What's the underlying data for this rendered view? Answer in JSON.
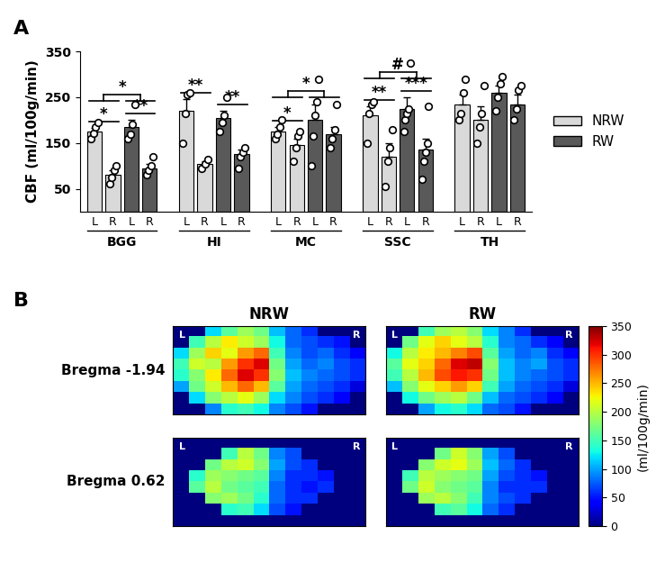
{
  "chart_data": [
    {
      "type": "bar",
      "panel": "A",
      "y_label": "CBF (ml/100g/min)",
      "categories": [
        "BGG",
        "HI",
        "MC",
        "SSC",
        "TH"
      ],
      "ylim": [
        0,
        350
      ],
      "yticks": [
        50,
        150,
        250,
        350
      ],
      "legend": "right",
      "series": [
        {
          "name": "NRW",
          "color": "#d9d9d9",
          "hemispheres": [
            {
              "side": "L",
              "values": [
                175,
                220,
                175,
                210,
                235
              ],
              "errors": [
                8,
                25,
                10,
                20,
                20
              ],
              "points": [
                [
                  160,
                  172,
                  185,
                  195
                ],
                [
                  150,
                  215,
                  255,
                  260
                ],
                [
                  160,
                  170,
                  185,
                  200
                ],
                [
                  150,
                  215,
                  235,
                  240
                ],
                [
                  200,
                  215,
                  260,
                  290
                ]
              ]
            },
            {
              "side": "R",
              "values": [
                80,
                105,
                145,
                120,
                200
              ],
              "errors": [
                10,
                6,
                15,
                30,
                30
              ],
              "points": [
                [
                  60,
                  75,
                  90,
                  100
                ],
                [
                  95,
                  105,
                  115
                ],
                [
                  110,
                  140,
                  165,
                  175
                ],
                [
                  55,
                  110,
                  140,
                  180
                ],
                [
                  150,
                  185,
                  215,
                  275
                ]
              ]
            }
          ]
        },
        {
          "name": "RW",
          "color": "#595959",
          "hemispheres": [
            {
              "side": "L",
              "values": [
                185,
                205,
                200,
                225,
                260
              ],
              "errors": [
                15,
                15,
                35,
                25,
                15
              ],
              "points": [
                [
                  160,
                  170,
                  190,
                  235
                ],
                [
                  175,
                  195,
                  210,
                  250
                ],
                [
                  100,
                  165,
                  210,
                  240,
                  290
                ],
                [
                  175,
                  200,
                  215,
                  225,
                  325
                ],
                [
                  220,
                  250,
                  280,
                  295
                ]
              ]
            },
            {
              "side": "R",
              "values": [
                95,
                125,
                170,
                135,
                235
              ],
              "errors": [
                10,
                10,
                15,
                25,
                20
              ],
              "points": [
                [
                  80,
                  90,
                  100,
                  120
                ],
                [
                  95,
                  120,
                  130,
                  140
                ],
                [
                  140,
                  160,
                  180,
                  235
                ],
                [
                  70,
                  110,
                  130,
                  150,
                  230
                ],
                [
                  200,
                  225,
                  265,
                  275
                ]
              ]
            }
          ]
        }
      ],
      "significance": [
        {
          "category": "BGG",
          "bars": [
            0,
            1
          ],
          "text": "*"
        },
        {
          "category": "BGG",
          "bars": [
            2,
            3
          ],
          "text": "**"
        },
        {
          "category": "BGG",
          "bars": [
            [
              0,
              1
            ],
            [
              2,
              3
            ]
          ],
          "text": "*"
        },
        {
          "category": "HI",
          "bars": [
            0,
            1
          ],
          "text": "**"
        },
        {
          "category": "HI",
          "bars": [
            2,
            3
          ],
          "text": "**"
        },
        {
          "category": "MC",
          "bars": [
            0,
            1
          ],
          "text": "*"
        },
        {
          "category": "MC",
          "bars": [
            [
              0,
              1
            ],
            [
              2,
              3
            ]
          ],
          "text": "*"
        },
        {
          "category": "SSC",
          "bars": [
            0,
            1
          ],
          "text": "**"
        },
        {
          "category": "SSC",
          "bars": [
            2,
            3
          ],
          "text": "***"
        },
        {
          "category": "SSC",
          "bars": [
            [
              0,
              1
            ],
            [
              2,
              3
            ]
          ],
          "text": "#"
        }
      ]
    },
    {
      "type": "heatmap",
      "panel": "B",
      "columns": [
        "NRW",
        "RW"
      ],
      "rows": [
        "Bregma -1.94",
        "Bregma 0.62"
      ],
      "hemisphere_labels": [
        "L",
        "R"
      ],
      "colorbar_label": "(ml/100g/min)",
      "color_range": [
        0,
        350
      ],
      "color_ticks": [
        0,
        50,
        100,
        150,
        200,
        250,
        300,
        350
      ],
      "cells": [
        [
          [
            [
              0,
              0,
              120,
              160,
              190,
              170,
              110,
              80,
              60,
              0,
              0,
              0
            ],
            [
              0,
              150,
              200,
              230,
              210,
              190,
              130,
              80,
              70,
              60,
              50,
              0
            ],
            [
              120,
              190,
              240,
              220,
              260,
              280,
              150,
              90,
              70,
              80,
              60,
              40
            ],
            [
              150,
              210,
              200,
              260,
              300,
              320,
              170,
              100,
              80,
              90,
              70,
              60
            ],
            [
              140,
              180,
              230,
              280,
              320,
              300,
              180,
              110,
              90,
              80,
              70,
              60
            ],
            [
              100,
              170,
              210,
              250,
              280,
              250,
              160,
              100,
              80,
              70,
              60,
              30
            ],
            [
              0,
              120,
              180,
              200,
              220,
              190,
              120,
              90,
              70,
              60,
              40,
              0
            ],
            [
              0,
              0,
              90,
              140,
              150,
              130,
              90,
              70,
              50,
              0,
              0,
              0
            ]
          ],
          [
            [
              0,
              0,
              150,
              190,
              200,
              180,
              120,
              90,
              60,
              0,
              0,
              0
            ],
            [
              0,
              170,
              220,
              240,
              220,
              200,
              140,
              90,
              80,
              60,
              40,
              0
            ],
            [
              130,
              200,
              230,
              250,
              270,
              290,
              160,
              100,
              80,
              90,
              60,
              40
            ],
            [
              160,
              220,
              240,
              280,
              320,
              330,
              180,
              110,
              90,
              100,
              70,
              60
            ],
            [
              150,
              200,
              250,
              290,
              310,
              300,
              170,
              110,
              90,
              80,
              70,
              60
            ],
            [
              110,
              180,
              220,
              240,
              260,
              240,
              150,
              100,
              80,
              70,
              60,
              30
            ],
            [
              0,
              130,
              170,
              190,
              200,
              170,
              110,
              80,
              70,
              60,
              40,
              0
            ],
            [
              0,
              0,
              100,
              130,
              140,
              120,
              80,
              70,
              50,
              0,
              0,
              0
            ]
          ]
        ],
        [
          [
            [
              0,
              0,
              0,
              0,
              0,
              0,
              0,
              0,
              0,
              0,
              0,
              0
            ],
            [
              0,
              0,
              0,
              150,
              200,
              170,
              90,
              70,
              0,
              0,
              0,
              0
            ],
            [
              0,
              0,
              170,
              200,
              210,
              180,
              100,
              70,
              60,
              0,
              0,
              0
            ],
            [
              0,
              140,
              190,
              180,
              170,
              160,
              90,
              60,
              60,
              50,
              0,
              0
            ],
            [
              0,
              160,
              200,
              170,
              160,
              150,
              80,
              60,
              50,
              60,
              0,
              0
            ],
            [
              0,
              0,
              180,
              190,
              170,
              140,
              80,
              60,
              60,
              0,
              0,
              0
            ],
            [
              0,
              0,
              0,
              140,
              150,
              120,
              70,
              50,
              0,
              0,
              0,
              0
            ],
            [
              0,
              0,
              0,
              0,
              0,
              0,
              0,
              0,
              0,
              0,
              0,
              0
            ]
          ],
          [
            [
              0,
              0,
              0,
              0,
              0,
              0,
              0,
              0,
              0,
              0,
              0,
              0
            ],
            [
              0,
              0,
              0,
              170,
              210,
              180,
              100,
              70,
              0,
              0,
              0,
              0
            ],
            [
              0,
              0,
              180,
              210,
              220,
              190,
              110,
              80,
              60,
              0,
              0,
              0
            ],
            [
              0,
              150,
              200,
              190,
              180,
              170,
              100,
              70,
              60,
              50,
              0,
              0
            ],
            [
              0,
              170,
              210,
              180,
              170,
              160,
              90,
              60,
              60,
              60,
              0,
              0
            ],
            [
              0,
              0,
              190,
              200,
              180,
              150,
              90,
              70,
              60,
              0,
              0,
              0
            ],
            [
              0,
              0,
              0,
              150,
              160,
              130,
              80,
              60,
              0,
              0,
              0,
              0
            ],
            [
              0,
              0,
              0,
              0,
              0,
              0,
              0,
              0,
              0,
              0,
              0,
              0
            ]
          ]
        ]
      ]
    }
  ]
}
